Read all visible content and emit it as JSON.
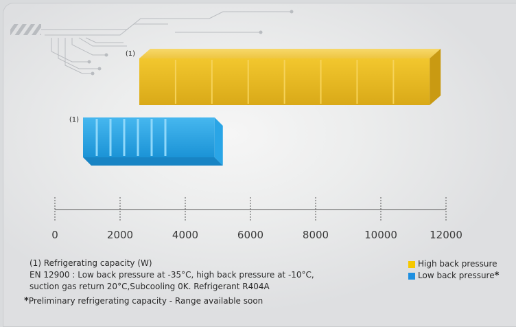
{
  "chart_data": {
    "type": "bar",
    "orientation": "horizontal",
    "xlim": [
      0,
      12000
    ],
    "x_ticks": [
      "0",
      "2000",
      "4000",
      "6000",
      "8000",
      "10000",
      "12000"
    ],
    "bars": [
      {
        "series": "High back pressure",
        "label": "(1)",
        "value": 11500,
        "color": "#f0c419"
      },
      {
        "series": "Low back pressure",
        "label": "(1)",
        "value": 4900,
        "color": "#1e9fe0"
      }
    ],
    "grid": "dashed vertical",
    "legend_placement": "bottom-right"
  },
  "legend": {
    "items": [
      {
        "label": "High back pressure",
        "color": "#f5c800"
      },
      {
        "label": "Low back pressure",
        "color": "#1e8fe0"
      }
    ],
    "asterisk": "*"
  },
  "notes": {
    "line1": "(1) Refrigerating capacity (W)",
    "line2": "EN 12900 : Low back pressure at -35°C, high back pressure at -10°C,",
    "line3": "suction gas return 20°C,Subcooling 0K. Refrigerant R404A",
    "footnote_star": "*",
    "footnote": "Preliminary refrigerating capacity - Range available soon"
  }
}
